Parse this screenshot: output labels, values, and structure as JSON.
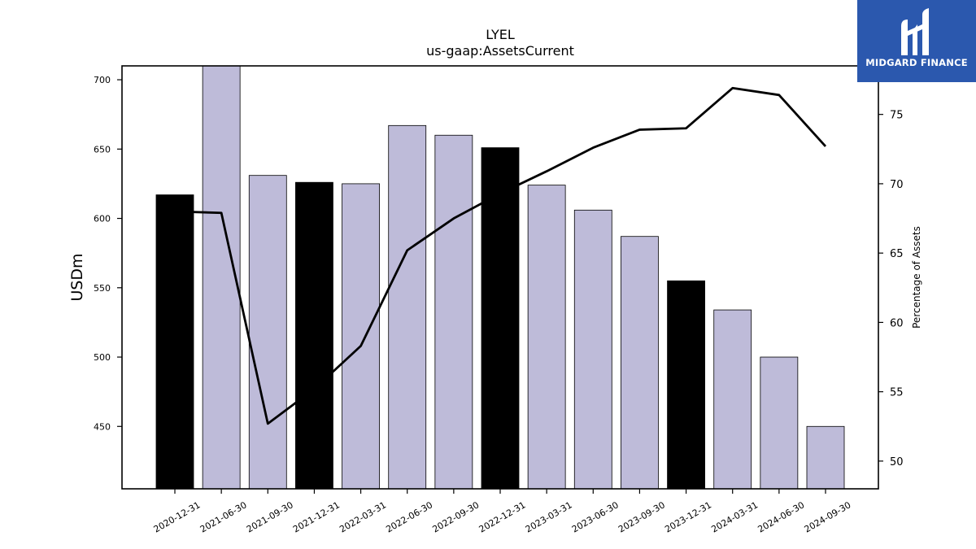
{
  "chart_data": {
    "type": "bar+line",
    "title": "LYEL",
    "subtitle": "us-gaap:AssetsCurrent",
    "ylabel": "USDm",
    "y2label": "Percentage of Assets",
    "ylim": [
      405,
      710
    ],
    "y2lim": [
      48,
      78.5
    ],
    "yticks": [
      450,
      500,
      550,
      600,
      650,
      700
    ],
    "y2ticks": [
      50,
      55,
      60,
      65,
      70,
      75
    ],
    "categories": [
      "2020-12-31",
      "2021-06-30",
      "2021-09-30",
      "2021-12-31",
      "2022-03-31",
      "2022-06-30",
      "2022-09-30",
      "2022-12-31",
      "2023-03-31",
      "2023-06-30",
      "2023-09-30",
      "2023-12-31",
      "2024-03-31",
      "2024-06-30",
      "2024-09-30"
    ],
    "bars": {
      "values": [
        617,
        710,
        631,
        626,
        625,
        667,
        660,
        651,
        624,
        606,
        587,
        555,
        534,
        500,
        450
      ],
      "highlight": [
        true,
        false,
        false,
        true,
        false,
        false,
        false,
        true,
        false,
        false,
        false,
        true,
        false,
        false,
        false
      ],
      "color_highlight": "#000000",
      "color_normal": "#bebbd9"
    },
    "line": {
      "values": [
        68.0,
        67.9,
        52.7,
        55.2,
        58.3,
        65.2,
        67.5,
        69.3,
        70.9,
        72.6,
        73.9,
        74.0,
        76.9,
        76.4,
        72.7
      ],
      "color": "#000000"
    },
    "grid": false
  },
  "logo": {
    "name": "MIDGARD FINANCE",
    "color": "#2b58ae"
  }
}
